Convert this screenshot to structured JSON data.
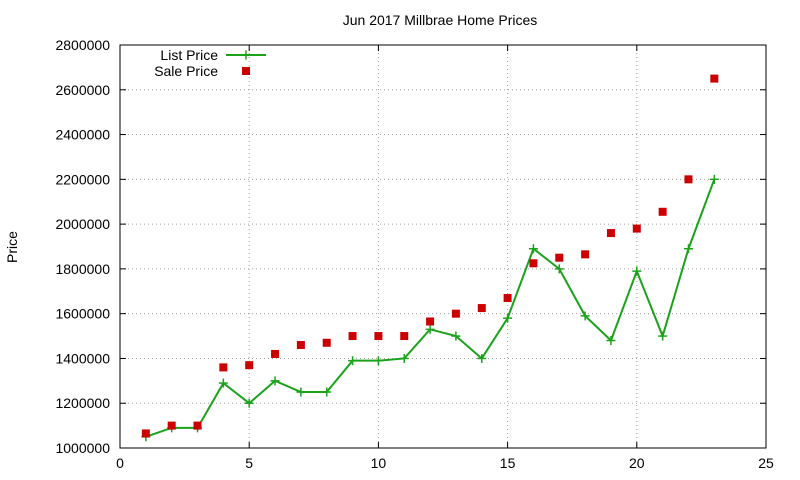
{
  "chart_data": {
    "type": "line",
    "title": "Jun 2017 Millbrae Home Prices",
    "xlabel": "",
    "ylabel": "Price",
    "xlim": [
      0,
      25
    ],
    "ylim": [
      1000000,
      2800000
    ],
    "x_ticks": [
      0,
      5,
      10,
      15,
      20,
      25
    ],
    "y_ticks": [
      1000000,
      1200000,
      1400000,
      1600000,
      1800000,
      2000000,
      2200000,
      2400000,
      2600000,
      2800000
    ],
    "grid": true,
    "legend_position": "top-left",
    "x": [
      1,
      2,
      3,
      4,
      5,
      6,
      7,
      8,
      9,
      10,
      11,
      12,
      13,
      14,
      15,
      16,
      17,
      18,
      19,
      20,
      21,
      22,
      23
    ],
    "series": [
      {
        "name": "List Price",
        "style": "line-points",
        "marker": "plus",
        "color": "#1aa31a",
        "values": [
          1050000,
          1090000,
          1090000,
          1290000,
          1200000,
          1300000,
          1250000,
          1250000,
          1390000,
          1390000,
          1400000,
          1530000,
          1500000,
          1400000,
          1580000,
          1890000,
          1800000,
          1590000,
          1480000,
          1790000,
          1500000,
          1890000,
          2200000
        ]
      },
      {
        "name": "Sale Price",
        "style": "points",
        "marker": "square",
        "color": "#cc0000",
        "values": [
          1065000,
          1100000,
          1100000,
          1360000,
          1370000,
          1420000,
          1460000,
          1470000,
          1500000,
          1500000,
          1500000,
          1565000,
          1600000,
          1625000,
          1670000,
          1825000,
          1850000,
          1865000,
          1960000,
          1980000,
          2055000,
          2200000,
          2650000
        ]
      }
    ]
  }
}
